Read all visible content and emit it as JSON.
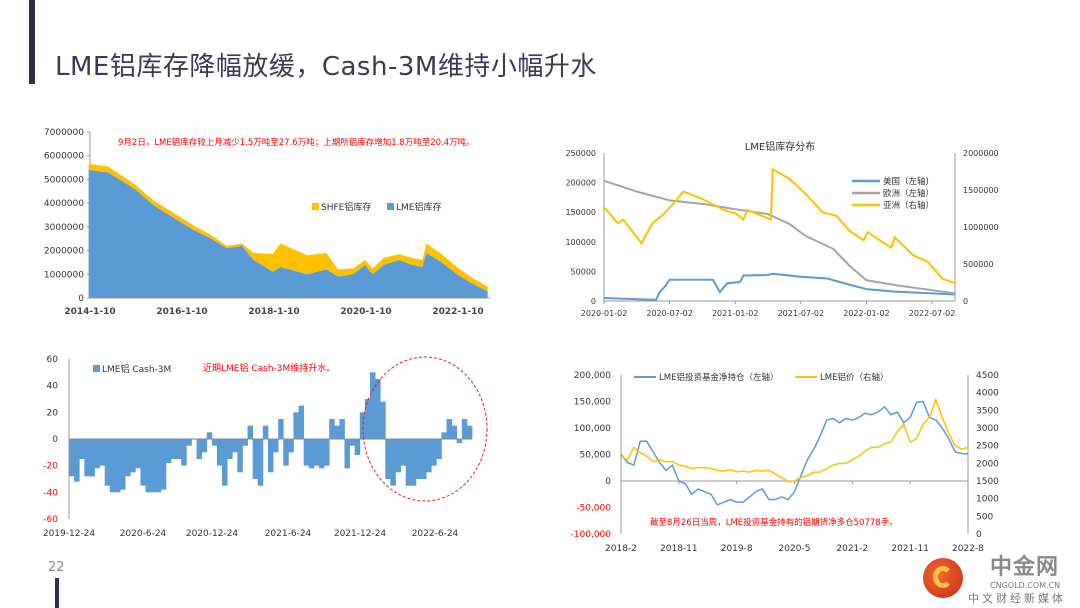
{
  "title": "LME铝库存降幅放缓，Cash-3M维持小幅升水",
  "page_number": "22",
  "logo": {
    "name": "中金网",
    "url": "CNGOLD.COM.CN",
    "slogan": "中文财经新媒体"
  },
  "chart_data": [
    {
      "type": "area",
      "id": "inventory",
      "stacked": true,
      "annotation": "9月2日，LME铝库存较上月减少1.5万吨至27.6万吨；上期所铝库存增加1.8万吨至20.4万吨。",
      "annotation_color": "#ff0000",
      "yticks": [
        "7000000",
        "6000000",
        "5000000",
        "4000000",
        "3000000",
        "2000000",
        "1000000",
        "0"
      ],
      "ylim": [
        0,
        7000000
      ],
      "xticks": [
        "2014-1-10",
        "2016-1-10",
        "2018-1-10",
        "2020-1-10",
        "2022-1-10"
      ],
      "legend_position": "center-right",
      "x": [
        "2014-01",
        "2014-06",
        "2015-01",
        "2015-06",
        "2016-01",
        "2016-04",
        "2016-09",
        "2017-01",
        "2017-05",
        "2017-08",
        "2018-01",
        "2018-03",
        "2018-10",
        "2019-03",
        "2019-06",
        "2019-10",
        "2020-01",
        "2020-03",
        "2020-06",
        "2020-10",
        "2021-01",
        "2021-04",
        "2021-05",
        "2021-09",
        "2022-01",
        "2022-05",
        "2022-09"
      ],
      "series": [
        {
          "name": "LME铝库存",
          "color": "#5b9bd5",
          "values": [
            5400000,
            5300000,
            4600000,
            3900000,
            3200000,
            2900000,
            2500000,
            2100000,
            2200000,
            1600000,
            1100000,
            1300000,
            1000000,
            1200000,
            900000,
            1000000,
            1400000,
            1000000,
            1400000,
            1600000,
            1400000,
            1300000,
            1900000,
            1500000,
            1000000,
            600000,
            280000
          ]
        },
        {
          "name": "SHFE铝库存",
          "color": "#ffc000",
          "values": [
            250000,
            250000,
            200000,
            200000,
            200000,
            200000,
            150000,
            100000,
            100000,
            300000,
            750000,
            1000000,
            800000,
            700000,
            300000,
            250000,
            200000,
            250000,
            300000,
            250000,
            300000,
            300000,
            400000,
            350000,
            300000,
            250000,
            200000
          ]
        }
      ]
    },
    {
      "type": "line",
      "id": "distribution",
      "title": "LME铝库存分布",
      "yticks_left": [
        "250000",
        "200000",
        "150000",
        "100000",
        "50000",
        "0"
      ],
      "ylim_left": [
        0,
        250000
      ],
      "yticks_right": [
        "2000000",
        "1500000",
        "1000000",
        "500000",
        "0"
      ],
      "ylim_right": [
        0,
        2000000
      ],
      "xticks": [
        "2020-01-02",
        "2020-07-02",
        "2021-01-02",
        "2021-07-02",
        "2022-01-02",
        "2022-07-02"
      ],
      "legend_position": "top-right",
      "series": [
        {
          "name": "美国（左轴)",
          "axis": "left",
          "color": "#5b9bd5",
          "points": [
            [
              "2020-01-02",
              5000
            ],
            [
              "2020-05-25",
              2000
            ],
            [
              "2020-06-05",
              15000
            ],
            [
              "2020-06-20",
              25000
            ],
            [
              "2020-07-02",
              36000
            ],
            [
              "2020-11-01",
              36000
            ],
            [
              "2020-11-20",
              15000
            ],
            [
              "2020-12-10",
              30000
            ],
            [
              "2021-01-15",
              32000
            ],
            [
              "2021-01-25",
              43000
            ],
            [
              "2021-04-01",
              44000
            ],
            [
              "2021-04-15",
              46000
            ],
            [
              "2021-07-02",
              41000
            ],
            [
              "2021-09-15",
              38000
            ],
            [
              "2021-11-01",
              30000
            ],
            [
              "2022-01-02",
              20000
            ],
            [
              "2022-03-15",
              16000
            ],
            [
              "2022-09-05",
              11000
            ]
          ]
        },
        {
          "name": "欧洲（左轴）",
          "axis": "left",
          "color": "#a5a5a5",
          "points": [
            [
              "2020-01-02",
              203000
            ],
            [
              "2020-04-01",
              185000
            ],
            [
              "2020-07-02",
              170000
            ],
            [
              "2020-10-15",
              163000
            ],
            [
              "2021-01-02",
              155000
            ],
            [
              "2021-04-01",
              147000
            ],
            [
              "2021-06-01",
              130000
            ],
            [
              "2021-07-15",
              110000
            ],
            [
              "2021-10-01",
              88000
            ],
            [
              "2021-11-15",
              60000
            ],
            [
              "2022-01-02",
              35000
            ],
            [
              "2022-04-01",
              26000
            ],
            [
              "2022-09-05",
              13000
            ]
          ]
        },
        {
          "name": "亚洲（右轴）",
          "axis": "right",
          "color": "#ffc000",
          "points": [
            [
              "2020-01-02",
              1270000
            ],
            [
              "2020-02-10",
              1050000
            ],
            [
              "2020-02-25",
              1100000
            ],
            [
              "2020-04-15",
              780000
            ],
            [
              "2020-05-15",
              1050000
            ],
            [
              "2020-06-15",
              1170000
            ],
            [
              "2020-07-15",
              1330000
            ],
            [
              "2020-08-10",
              1480000
            ],
            [
              "2020-10-01",
              1380000
            ],
            [
              "2020-12-01",
              1230000
            ],
            [
              "2021-01-05",
              1180000
            ],
            [
              "2021-01-25",
              1100000
            ],
            [
              "2021-02-05",
              1230000
            ],
            [
              "2021-04-10",
              1100000
            ],
            [
              "2021-04-15",
              1780000
            ],
            [
              "2021-06-01",
              1650000
            ],
            [
              "2021-07-15",
              1450000
            ],
            [
              "2021-09-01",
              1200000
            ],
            [
              "2021-10-10",
              1150000
            ],
            [
              "2021-11-15",
              950000
            ],
            [
              "2021-12-25",
              820000
            ],
            [
              "2022-01-05",
              930000
            ],
            [
              "2022-03-10",
              720000
            ],
            [
              "2022-03-20",
              860000
            ],
            [
              "2022-05-10",
              620000
            ],
            [
              "2022-06-20",
              530000
            ],
            [
              "2022-08-01",
              300000
            ],
            [
              "2022-09-05",
              240000
            ]
          ]
        }
      ]
    },
    {
      "type": "bar",
      "id": "cash3m",
      "annotation": "近期LME铝 Cash-3M维持升水。",
      "annotation_color": "#ff0000",
      "legend": "LME铝 Cash-3M",
      "color": "#5b9bd5",
      "yticks": [
        "60",
        "40",
        "20",
        "0",
        "-20",
        "-40",
        "-60"
      ],
      "ylim": [
        -60,
        60
      ],
      "xticks": [
        "2019-12-24",
        "2020-6-24",
        "2020-12-24",
        "2021-6-24",
        "2021-12-24",
        "2022-6-24"
      ],
      "x_start": "2019-12-24",
      "x_end": "2022-09-02",
      "values": [
        -28,
        -32,
        -15,
        -28,
        -28,
        -22,
        -20,
        -35,
        -40,
        -40,
        -38,
        -28,
        -25,
        -22,
        -35,
        -40,
        -40,
        -40,
        -38,
        -18,
        -15,
        -15,
        -20,
        -5,
        0,
        -15,
        -10,
        5,
        -5,
        -20,
        -35,
        -15,
        -10,
        -25,
        -5,
        10,
        -30,
        -35,
        10,
        -25,
        -10,
        15,
        -20,
        -10,
        20,
        25,
        -20,
        -22,
        -20,
        -22,
        -20,
        15,
        10,
        15,
        -22,
        -5,
        -12,
        20,
        30,
        50,
        45,
        28,
        -30,
        -35,
        -25,
        -20,
        -35,
        -35,
        -30,
        -30,
        -25,
        -20,
        -15,
        5,
        15,
        10,
        -3,
        15,
        10
      ],
      "highlight": "red dashed ellipse around 2022"
    },
    {
      "type": "line",
      "id": "funds",
      "annotation": "截至8月26日当周，LME投资基金持有的铝期货净多仓50778手。",
      "annotation_color": "#ff0000",
      "yticks_left": [
        "200,000",
        "150,000",
        "100,000",
        "50,000",
        "0",
        "-50,000",
        "-100,000"
      ],
      "ylim_left": [
        -100000,
        200000
      ],
      "yticks_right": [
        "4500",
        "4000",
        "3500",
        "3000",
        "2500",
        "2000",
        "1500",
        "1000",
        "500",
        "0"
      ],
      "ylim_right": [
        0,
        4500
      ],
      "xticks": [
        "2018-2",
        "2018-11",
        "2019-8",
        "2020-5",
        "2021-2",
        "2021-11",
        "2022-8"
      ],
      "x_start": "2018-02",
      "legend_position": "top",
      "series": [
        {
          "name": "LME铝投资基金净持仓（左轴）",
          "axis": "left",
          "color": "#5b9bd5",
          "values": [
            50000,
            35000,
            30000,
            75000,
            75000,
            55000,
            35000,
            20000,
            30000,
            0,
            -5000,
            -25000,
            -15000,
            -20000,
            -25000,
            -45000,
            -40000,
            -35000,
            -40000,
            -40000,
            -30000,
            -20000,
            -15000,
            -35000,
            -35000,
            -30000,
            -35000,
            -20000,
            10000,
            40000,
            60000,
            85000,
            115000,
            118000,
            110000,
            118000,
            115000,
            120000,
            128000,
            125000,
            130000,
            140000,
            125000,
            130000,
            110000,
            120000,
            148000,
            150000,
            120000,
            115000,
            100000,
            80000,
            55000,
            52000,
            50778
          ]
        },
        {
          "name": "LME铝价（右轴）",
          "axis": "right",
          "color": "#ffc000",
          "values": [
            2200,
            2100,
            2450,
            2300,
            2200,
            2050,
            2100,
            2050,
            2050,
            1950,
            1920,
            1850,
            1880,
            1880,
            1850,
            1800,
            1780,
            1820,
            1760,
            1780,
            1750,
            1800,
            1780,
            1800,
            1700,
            1600,
            1480,
            1500,
            1600,
            1650,
            1750,
            1750,
            1850,
            1950,
            2000,
            2000,
            2100,
            2200,
            2350,
            2450,
            2450,
            2550,
            2600,
            2900,
            3100,
            2600,
            2700,
            3100,
            3300,
            3800,
            3300,
            2850,
            2500,
            2400,
            2450
          ]
        }
      ]
    }
  ]
}
